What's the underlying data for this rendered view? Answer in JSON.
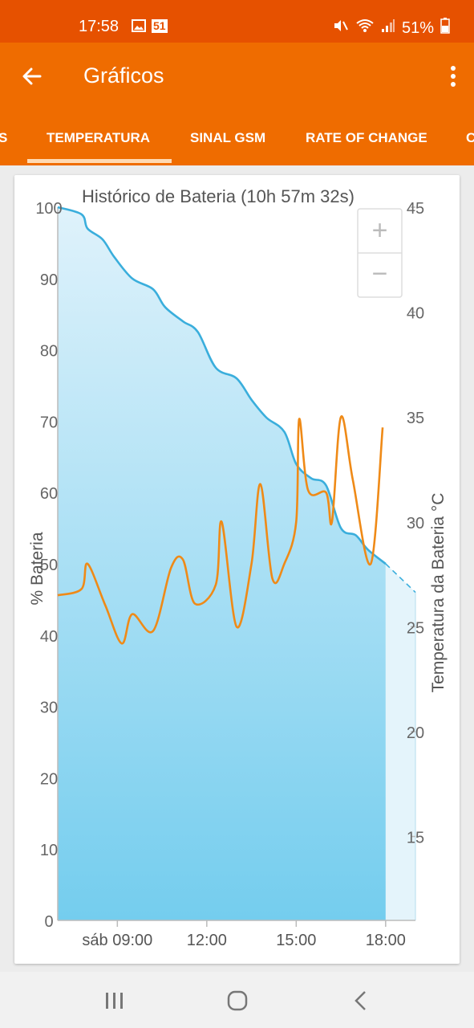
{
  "status_bar": {
    "time": "17:58",
    "notification_badge": "51",
    "battery_percent": "51%"
  },
  "app_bar": {
    "title": "Gráficos",
    "back_icon": "arrow-left-icon",
    "menu_icon": "more-vert-icon"
  },
  "tabs": [
    {
      "label": "S",
      "selected": false
    },
    {
      "label": "TEMPERATURA",
      "selected": true
    },
    {
      "label": "SINAL GSM",
      "selected": false
    },
    {
      "label": "RATE OF CHANGE",
      "selected": false
    },
    {
      "label": "C",
      "selected": false
    }
  ],
  "zoom": {
    "in_label": "+",
    "out_label": "−"
  },
  "colors": {
    "status_bar": "#e65100",
    "app_bar": "#ef6c00",
    "battery_line": "#3aaedc",
    "battery_fill_top": "#dff2fb",
    "battery_fill_bottom": "#74cdee",
    "temperature_line": "#ef8a17"
  },
  "chart_data": {
    "type": "line",
    "title": "Histórico de Bateria (10h 57m 32s)",
    "ylabel": "% Bateria",
    "y2label": "Temperatura da Bateria °C",
    "x_ticks": [
      "sáb 09:00",
      "12:00",
      "15:00",
      "18:00"
    ],
    "x_tick_hours": [
      9,
      12,
      15,
      18
    ],
    "xlim": [
      7.0,
      19.0
    ],
    "ylim": [
      0,
      100
    ],
    "y2lim": [
      11,
      45
    ],
    "y_ticks": [
      0,
      10,
      20,
      30,
      40,
      50,
      60,
      70,
      80,
      90,
      100
    ],
    "y2_ticks": [
      15,
      20,
      25,
      30,
      35,
      40,
      45
    ],
    "series": [
      {
        "axis": "left",
        "points": [
          [
            7.0,
            100
          ],
          [
            7.8,
            99
          ],
          [
            8.0,
            97
          ],
          [
            8.5,
            95.5
          ],
          [
            8.9,
            93
          ],
          [
            9.5,
            90
          ],
          [
            10.2,
            88.5
          ],
          [
            10.6,
            86
          ],
          [
            11.2,
            84
          ],
          [
            11.7,
            82.5
          ],
          [
            12.3,
            77.5
          ],
          [
            13.0,
            76
          ],
          [
            13.5,
            73
          ],
          [
            14.0,
            70.5
          ],
          [
            14.6,
            68.5
          ],
          [
            15.0,
            64
          ],
          [
            15.5,
            62
          ],
          [
            16.0,
            61
          ],
          [
            16.5,
            55
          ],
          [
            17.0,
            54
          ],
          [
            17.4,
            52
          ],
          [
            18.0,
            50
          ]
        ]
      },
      {
        "axis": "left",
        "projected": true,
        "points": [
          [
            18.0,
            50
          ],
          [
            19.0,
            46
          ]
        ]
      },
      {
        "axis": "right",
        "points": [
          [
            7.0,
            26.5
          ],
          [
            7.8,
            26.8
          ],
          [
            8.0,
            28.0
          ],
          [
            8.6,
            26.0
          ],
          [
            9.15,
            24.2
          ],
          [
            9.5,
            25.6
          ],
          [
            10.2,
            24.8
          ],
          [
            10.8,
            27.8
          ],
          [
            11.2,
            28.2
          ],
          [
            11.6,
            26.1
          ],
          [
            12.3,
            27.0
          ],
          [
            12.5,
            30.0
          ],
          [
            13.0,
            25.0
          ],
          [
            13.5,
            28.0
          ],
          [
            13.8,
            31.8
          ],
          [
            14.2,
            27.3
          ],
          [
            14.6,
            28.0
          ],
          [
            15.0,
            30.0
          ],
          [
            15.1,
            34.9
          ],
          [
            15.4,
            31.5
          ],
          [
            16.0,
            31.4
          ],
          [
            16.2,
            30.0
          ],
          [
            16.5,
            35.0
          ],
          [
            16.9,
            32.0
          ],
          [
            17.5,
            28.0
          ],
          [
            17.9,
            34.5
          ]
        ]
      }
    ],
    "grid": false,
    "legend": "none"
  }
}
